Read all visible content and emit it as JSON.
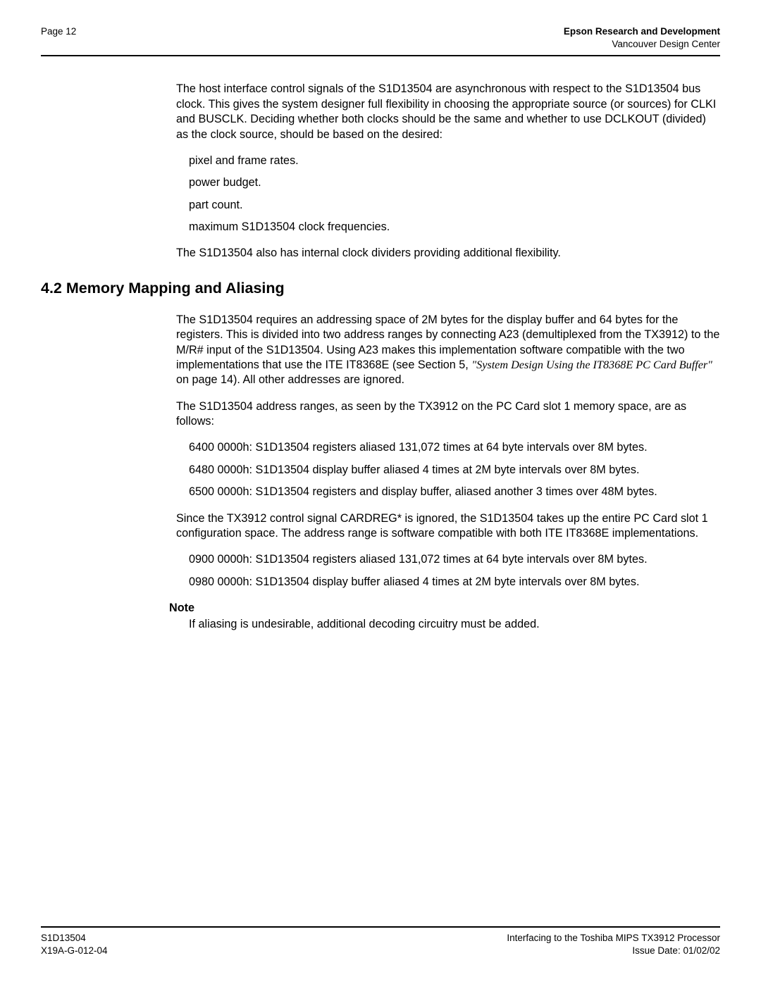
{
  "header": {
    "page_label": "Page 12",
    "org_bold": "Epson Research and Development",
    "org_sub": "Vancouver Design Center"
  },
  "content": {
    "p1": "The host interface control signals of the S1D13504 are asynchronous with respect to the S1D13504 bus clock. This gives the system designer full flexibility in choosing the appropriate source (or sources) for CLKI and BUSCLK. Deciding whether both clocks should be the same and whether to use DCLKOUT (divided) as the clock source, should be based on the desired:",
    "list1": [
      "pixel and frame rates.",
      "power budget.",
      "part count.",
      "maximum S1D13504 clock frequencies."
    ],
    "p2": "The S1D13504 also has internal clock dividers providing additional flexibility.",
    "h2": "4.2  Memory Mapping and Aliasing",
    "p3a": "The S1D13504 requires an addressing space of 2M bytes for the display buffer and 64 bytes for the registers. This is divided into two address ranges by connecting A23 (demultiplexed from the TX3912) to the M/R# input of the S1D13504. Using A23 makes this implementation software compatible with the two implementations that use the ITE IT8368E (see Section 5, ",
    "p3b_italic": "\"System Design Using the IT8368E PC Card Buffer\"",
    "p3c": " on page 14). All other addresses are ignored.",
    "p4": "The S1D13504 address ranges, as seen by the TX3912 on the PC Card slot 1 memory space, are as follows:",
    "list2": [
      "6400 0000h: S1D13504 registers aliased 131,072 times at 64 byte intervals over 8M bytes.",
      "6480 0000h: S1D13504 display buffer aliased 4 times at 2M byte intervals over 8M bytes.",
      "6500 0000h: S1D13504 registers and display buffer, aliased another 3 times over 48M bytes."
    ],
    "p5": "Since the TX3912 control signal CARDREG* is ignored, the S1D13504 takes up the entire PC Card slot 1 configuration space. The address range is software compatible with both ITE IT8368E implementations.",
    "list3": [
      "0900 0000h: S1D13504 registers aliased 131,072 times at 64 byte intervals over 8M bytes.",
      "0980 0000h: S1D13504 display buffer aliased 4 times at 2M byte intervals over 8M bytes."
    ],
    "note_label": "Note",
    "note_body": "If aliasing is undesirable, additional decoding circuitry must be added."
  },
  "footer": {
    "left1": "S1D13504",
    "left2": "X19A-G-012-04",
    "right1": "Interfacing to the Toshiba MIPS TX3912 Processor",
    "right2": "Issue Date: 01/02/02"
  }
}
